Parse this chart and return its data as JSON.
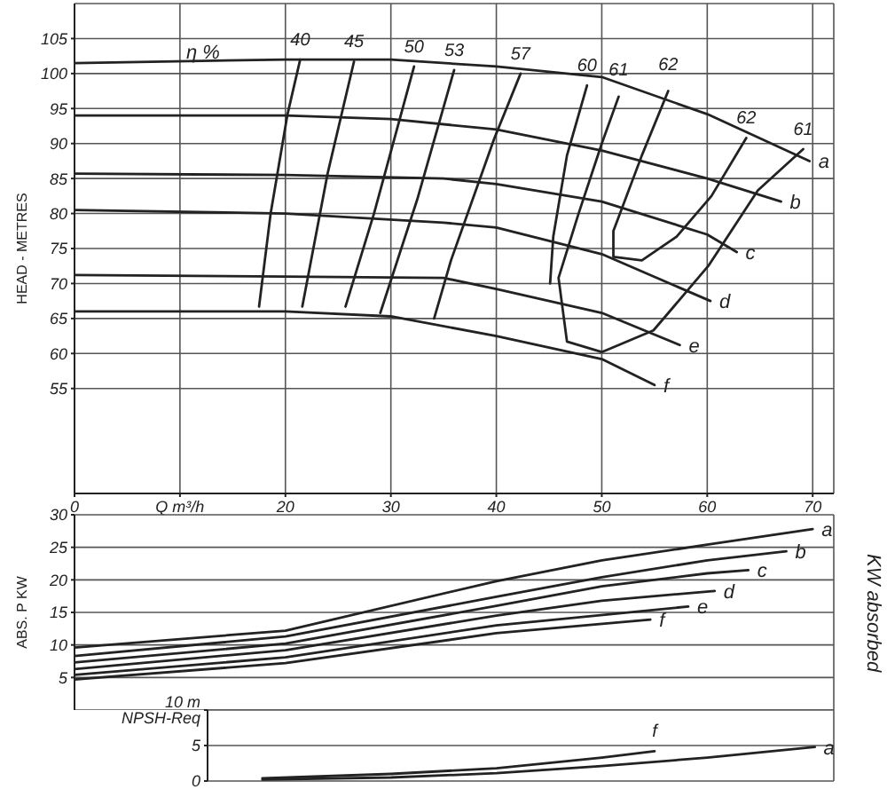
{
  "chart_data": [
    {
      "type": "line",
      "ylabel": "HEAD - METRES",
      "xlim": [
        0,
        72
      ],
      "ylim": [
        40,
        110
      ],
      "xticks": [
        0,
        {
          "value": 10,
          "label": "Q m³/h"
        },
        20,
        30,
        40,
        50,
        60,
        70
      ],
      "yticks": [
        55,
        60,
        65,
        70,
        75,
        80,
        85,
        90,
        95,
        100,
        105
      ],
      "grid": true,
      "legend": false,
      "marker": "none",
      "line_style": "solid",
      "annotations": [
        "η %",
        {
          "text": "61",
          "x": 51.6,
          "y": 96.7
        },
        {
          "text": "62",
          "x": 56.3,
          "y": 97.5
        }
      ],
      "series": [
        {
          "name": "a",
          "color": "#222222",
          "x": [
            0,
            20,
            30,
            40,
            50,
            60,
            69.7
          ],
          "values": [
            101.5,
            102,
            102,
            101,
            99.5,
            94.2,
            87.5
          ]
        },
        {
          "name": "b",
          "color": "#222222",
          "x": [
            0,
            20,
            30,
            40,
            50,
            60,
            67
          ],
          "values": [
            94,
            94,
            93.5,
            92,
            89,
            85,
            81.7
          ]
        },
        {
          "name": "c",
          "color": "#222222",
          "x": [
            0,
            20,
            35,
            40,
            50,
            60,
            62.8
          ],
          "values": [
            85.7,
            85.5,
            85,
            84.2,
            81.7,
            77,
            74.5
          ]
        },
        {
          "name": "d",
          "color": "#222222",
          "x": [
            0,
            20,
            35,
            40,
            50,
            60.3
          ],
          "values": [
            80.5,
            80,
            78.7,
            78,
            74.2,
            67.5
          ]
        },
        {
          "name": "e",
          "color": "#222222",
          "x": [
            0,
            20,
            35,
            40,
            50,
            57.4
          ],
          "values": [
            71.2,
            71,
            70.8,
            69.2,
            65.8,
            61.2
          ]
        },
        {
          "name": "f",
          "color": "#222222",
          "x": [
            0,
            20,
            30,
            40,
            50,
            55
          ],
          "values": [
            66,
            66,
            65.3,
            62.5,
            59.2,
            55.5
          ]
        },
        {
          "name": "40",
          "color": "#222222",
          "x": [
            21.4,
            20.2,
            18.6,
            17.5
          ],
          "values": [
            102,
            94.2,
            80,
            66.7
          ]
        },
        {
          "name": "45",
          "color": "#222222",
          "x": [
            26.5,
            24,
            21.6
          ],
          "values": [
            101.7,
            85.7,
            66.7
          ]
        },
        {
          "name": "50",
          "color": "#222222",
          "x": [
            32.2,
            28.4,
            25.7
          ],
          "values": [
            101,
            80,
            66.7
          ]
        },
        {
          "name": "53",
          "color": "#222222",
          "x": [
            36,
            32.5,
            29
          ],
          "values": [
            100.5,
            82,
            65.8
          ]
        },
        {
          "name": "57",
          "color": "#222222",
          "x": [
            42.3,
            39.8,
            35.7,
            34.1
          ],
          "values": [
            100,
            90.7,
            73.3,
            65
          ]
        },
        {
          "name": "60",
          "color": "#222222",
          "x": [
            48.6,
            46.7,
            45.4,
            45.1
          ],
          "values": [
            98.3,
            88.3,
            76.7,
            70
          ]
        },
        {
          "name": "61",
          "color": "#222222",
          "x": [
            51.6,
            50,
            47.8,
            45.9,
            46.7,
            50,
            54.9,
            60.1,
            64.8,
            69.1
          ],
          "values": [
            96.7,
            90,
            80,
            70.8,
            61.7,
            60.2,
            63.3,
            72.5,
            83.3,
            89.2
          ]
        },
        {
          "name": "62",
          "color": "#222222",
          "x": [
            56.3,
            53.8,
            51.1,
            51.1,
            53.8,
            57.1,
            60.4,
            63.7
          ],
          "values": [
            97.5,
            88.3,
            77.5,
            73.8,
            73.3,
            76.7,
            82.5,
            90.8
          ]
        }
      ]
    },
    {
      "type": "line",
      "ylabel": "ABS. P KW",
      "xlim": [
        0,
        72
      ],
      "ylim": [
        0,
        30
      ],
      "xticks": [
        0,
        10,
        20,
        30,
        40,
        50,
        60,
        70
      ],
      "yticks": [
        5,
        10,
        15,
        20,
        25,
        30
      ],
      "tick_labels": "y",
      "grid": true,
      "legend": false,
      "marker": "none",
      "line_style": "solid",
      "annotations": [
        "KW absorbed"
      ],
      "series": [
        {
          "name": "a",
          "color": "#222222",
          "x": [
            0,
            20,
            40,
            50,
            60,
            70
          ],
          "values": [
            9.6,
            12.2,
            19.8,
            23,
            25.4,
            27.8
          ]
        },
        {
          "name": "b",
          "color": "#222222",
          "x": [
            0,
            20,
            40,
            50,
            60,
            67.5
          ],
          "values": [
            8.3,
            11.3,
            17.4,
            20.4,
            23,
            24.4
          ]
        },
        {
          "name": "c",
          "color": "#222222",
          "x": [
            0,
            20,
            40,
            50,
            60,
            63.9
          ],
          "values": [
            7.3,
            10.2,
            16,
            19,
            21,
            21.5
          ]
        },
        {
          "name": "d",
          "color": "#222222",
          "x": [
            0,
            20,
            40,
            50,
            60.7
          ],
          "values": [
            6.3,
            9.2,
            14.5,
            16.8,
            18.3
          ]
        },
        {
          "name": "e",
          "color": "#222222",
          "x": [
            0,
            20,
            40,
            58.2
          ],
          "values": [
            5.4,
            8.1,
            13,
            15.9
          ]
        },
        {
          "name": "f",
          "color": "#222222",
          "x": [
            0,
            20,
            40,
            54.6
          ],
          "values": [
            4.7,
            7.2,
            11.8,
            13.9
          ]
        }
      ]
    },
    {
      "type": "line",
      "xlim": [
        12.6,
        72
      ],
      "ylim": [
        0,
        10
      ],
      "xticks": [
        20,
        30,
        40,
        50,
        60,
        70
      ],
      "yticks": [
        0,
        5,
        {
          "value": 10,
          "label": "10 m NPSH-Req"
        }
      ],
      "tick_labels": "y",
      "grid": true,
      "legend": false,
      "marker": "none",
      "line_style": "solid",
      "series": [
        {
          "name": "a",
          "color": "#222222",
          "x": [
            17.8,
            30,
            40,
            50,
            60,
            70.2
          ],
          "values": [
            0.2,
            0.5,
            1.1,
            2.1,
            3.3,
            4.8
          ]
        },
        {
          "name": "f",
          "color": "#222222",
          "x": [
            17.8,
            30,
            40,
            50,
            55
          ],
          "values": [
            0.4,
            1,
            1.8,
            3.3,
            4.2
          ]
        }
      ]
    }
  ]
}
